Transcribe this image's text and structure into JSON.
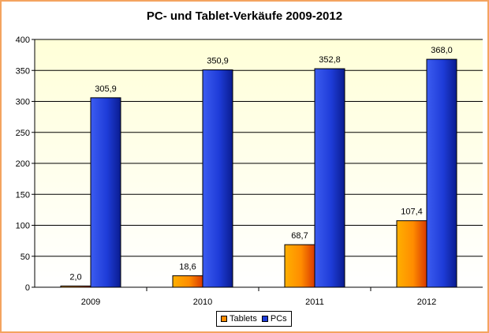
{
  "chart_data": {
    "type": "bar",
    "title": "PC- und Tablet-Verkäufe 2009-2012",
    "categories": [
      "2009",
      "2010",
      "2011",
      "2012"
    ],
    "series": [
      {
        "name": "Tablets",
        "values": [
          2.0,
          18.6,
          68.7,
          107.4
        ],
        "labels": [
          "2,0",
          "18,6",
          "68,7",
          "107,4"
        ],
        "color": "#ff8c00"
      },
      {
        "name": "PCs",
        "values": [
          305.9,
          350.9,
          352.8,
          368.0
        ],
        "labels": [
          "305,9",
          "350,9",
          "352,8",
          "368,0"
        ],
        "color": "#1e3cd8"
      }
    ],
    "ylim": [
      0,
      400
    ],
    "yticks": [
      0,
      50,
      100,
      150,
      200,
      250,
      300,
      350,
      400
    ],
    "grid": true,
    "legend_position": "bottom",
    "plot_background": "#ffffe0",
    "xlabel": "",
    "ylabel": ""
  }
}
